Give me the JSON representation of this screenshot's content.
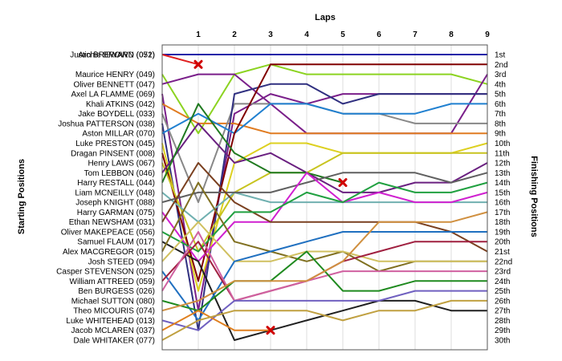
{
  "chart_data": {
    "type": "line",
    "title": "Laps",
    "ylabel_left": "Starting Positions",
    "ylabel_right": "Finishing Positions",
    "x_ticks": [
      "1",
      "2",
      "3",
      "4",
      "5",
      "6",
      "7",
      "8",
      "9"
    ],
    "right_labels": [
      "1st",
      "2nd",
      "3rd",
      "4th",
      "5th",
      "6th",
      "7th",
      "8th",
      "9th",
      "10th",
      "11th",
      "12th",
      "13th",
      "14th",
      "15th",
      "16th",
      "17th",
      "18th",
      "19th",
      "20th",
      "21st",
      "22nd",
      "23rd",
      "24th",
      "25th",
      "26th",
      "27th",
      "28th",
      "29th",
      "30th"
    ],
    "ylim": [
      1,
      30
    ],
    "xlim": [
      0,
      9
    ],
    "y_inverted": true,
    "grid": true,
    "series": [
      {
        "name": "Justin BREWARD (051)",
        "color": "#1a1aa8",
        "values": [
          1,
          1,
          1,
          1,
          1,
          1,
          1,
          1,
          1,
          1
        ]
      },
      {
        "name": "Archie BROWN (072)",
        "color": "#e02020",
        "values": [
          1,
          2,
          null,
          null,
          null,
          null,
          null,
          null,
          null,
          null
        ],
        "retired": true
      },
      {
        "name": "Maurice HENRY (049)",
        "color": "#8cd321",
        "values": [
          3,
          9,
          3,
          2,
          3,
          3,
          3,
          3,
          3,
          4
        ]
      },
      {
        "name": "Oliver BENNETT (047)",
        "color": "#7a1f8a",
        "values": [
          4,
          3,
          3,
          6,
          9,
          9,
          9,
          9,
          9,
          3
        ]
      },
      {
        "name": "Axel LA FLAMME (069)",
        "color": "#7a1f8a",
        "values": [
          5,
          27,
          7,
          5,
          6,
          5,
          5,
          5,
          5,
          5
        ]
      },
      {
        "name": "Khali ATKINS (042)",
        "color": "#e07b20",
        "values": [
          6,
          8,
          8,
          9,
          9,
          9,
          9,
          9,
          9,
          9
        ]
      },
      {
        "name": "Jake BOYDELL (033)",
        "color": "#888888",
        "values": [
          7,
          16,
          6,
          6,
          6,
          7,
          7,
          8,
          8,
          8
        ]
      },
      {
        "name": "Joshua PATTERSON (038)",
        "color": "#303080",
        "values": [
          8,
          29,
          5,
          4,
          4,
          6,
          5,
          5,
          5,
          5
        ]
      },
      {
        "name": "Aston MILLAR (070)",
        "color": "#2080d0",
        "values": [
          9,
          7,
          9,
          6,
          6,
          7,
          7,
          7,
          6,
          6
        ]
      },
      {
        "name": "Luke PRESTON (045)",
        "color": "#ddd020",
        "values": [
          10,
          25,
          12,
          10,
          10,
          11,
          11,
          11,
          11,
          10
        ]
      },
      {
        "name": "Dragan PINSENT (008)",
        "color": "#800000",
        "values": [
          11,
          24,
          9,
          2,
          2,
          2,
          2,
          2,
          2,
          2
        ]
      },
      {
        "name": "Henry LAWS (067)",
        "color": "#c8c420",
        "values": [
          12,
          21,
          15,
          13,
          13,
          11,
          11,
          11,
          11,
          11
        ]
      },
      {
        "name": "Tom LEBBON (046)",
        "color": "#6a2080",
        "values": [
          13,
          8,
          12,
          11,
          13,
          15,
          15,
          14,
          14,
          12
        ]
      },
      {
        "name": "Harry RESTALL (044)",
        "color": "#207a20",
        "values": [
          14,
          6,
          11,
          13,
          13,
          14,
          null,
          null,
          null,
          null
        ],
        "retired": true
      },
      {
        "name": "Liam MCNEILLY (048)",
        "color": "#70b0b0",
        "values": [
          15,
          18,
          15,
          16,
          16,
          16,
          16,
          16,
          16,
          16
        ]
      },
      {
        "name": "Joseph KNIGHT (088)",
        "color": "#606060",
        "values": [
          16,
          15,
          15,
          15,
          14,
          13,
          13,
          13,
          14,
          13
        ]
      },
      {
        "name": "Harry GARMAN (075)",
        "color": "#d020d0",
        "values": [
          17,
          22,
          18,
          18,
          13,
          16,
          15,
          16,
          16,
          15
        ]
      },
      {
        "name": "Ethan NEWSHAM (031)",
        "color": "#7a4020",
        "values": [
          18,
          12,
          16,
          18,
          18,
          18,
          18,
          18,
          19,
          21
        ]
      },
      {
        "name": "Oliver MAKEPEACE (056)",
        "color": "#20a040",
        "values": [
          19,
          21,
          17,
          17,
          15,
          16,
          14,
          15,
          15,
          14
        ]
      },
      {
        "name": "Samuel FLAUM (017)",
        "color": "#202020",
        "values": [
          20,
          22,
          30,
          29,
          28,
          27,
          26,
          26,
          27,
          27
        ]
      },
      {
        "name": "Alex MACGREGOR (015)",
        "color": "#807020",
        "values": [
          21,
          14,
          20,
          21,
          22,
          21,
          23,
          22,
          22,
          22
        ]
      },
      {
        "name": "Josh STEED (094)",
        "color": "#d0c060",
        "values": [
          22,
          18,
          22,
          22,
          21,
          21,
          22,
          22,
          22,
          22
        ]
      },
      {
        "name": "Casper STEVENSON (025)",
        "color": "#2070c0",
        "values": [
          23,
          28,
          22,
          21,
          20,
          19,
          19,
          19,
          19,
          19
        ]
      },
      {
        "name": "William ATTREED (059)",
        "color": "#a02040",
        "values": [
          24,
          20,
          26,
          25,
          24,
          22,
          21,
          20,
          20,
          20
        ]
      },
      {
        "name": "Ben BURGESS (026)",
        "color": "#d060a0",
        "values": [
          25,
          19,
          26,
          25,
          24,
          23,
          23,
          23,
          23,
          23
        ]
      },
      {
        "name": "Michael SUTTON (080)",
        "color": "#1f8a1f",
        "values": [
          26,
          27,
          24,
          24,
          21,
          25,
          25,
          24,
          24,
          24
        ]
      },
      {
        "name": "Theo MICOURIS (074)",
        "color": "#d09040",
        "values": [
          27,
          26,
          24,
          24,
          24,
          22,
          18,
          18,
          18,
          17
        ]
      },
      {
        "name": "Luke WHITEHEAD (013)",
        "color": "#7060c0",
        "values": [
          28,
          29,
          26,
          26,
          26,
          26,
          26,
          25,
          25,
          25
        ]
      },
      {
        "name": "Jacob MCLAREN (037)",
        "color": "#e08020",
        "values": [
          29,
          27,
          29,
          29,
          null,
          null,
          null,
          null,
          null,
          null
        ],
        "retired": true
      },
      {
        "name": "Dale WHITAKER (077)",
        "color": "#c0a040",
        "values": [
          30,
          28,
          27,
          27,
          27,
          28,
          27,
          27,
          26,
          26
        ]
      }
    ]
  }
}
